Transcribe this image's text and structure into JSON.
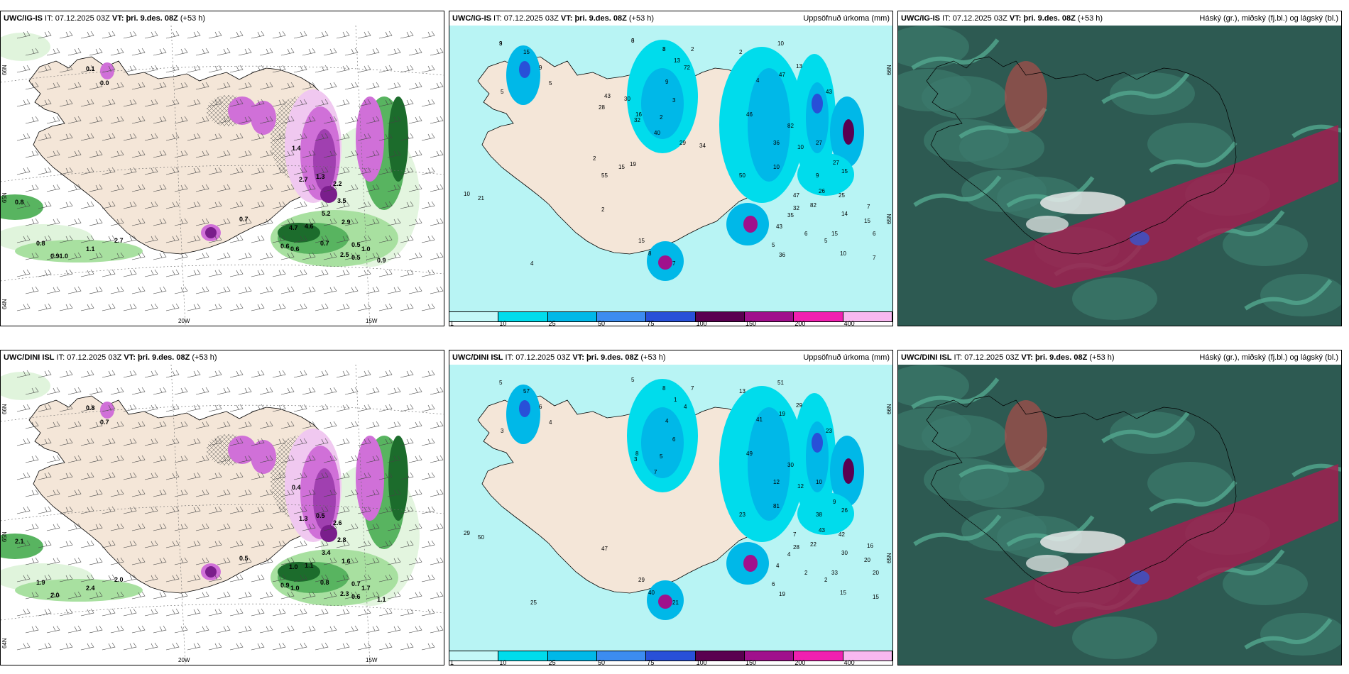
{
  "panels": [
    {
      "id": "p1",
      "model": "UWC/IG-IS",
      "it_label": "IT:",
      "it": "07.12.2025 03Z",
      "vt_label": "VT:",
      "vt": "þri. 9.des. 08Z",
      "lead": "(+53 h)",
      "right_title": "",
      "kind": "wind",
      "lon_labels": [
        "20W",
        "15W"
      ],
      "lat_labels": [
        "66N",
        "65N",
        "64N"
      ],
      "values": [
        "0.1",
        "0.0",
        "0.8",
        "0.8",
        "1.1",
        "2.7",
        "0.91.0",
        "0.7",
        "1.4",
        "2.7",
        "1.3",
        "2.2",
        "3.5",
        "5.2",
        "4.7",
        "4.6",
        "2.9",
        "0.6",
        "0.6",
        "0.7",
        "0.5",
        "0.5",
        "1.0",
        "0.9",
        "2.5"
      ]
    },
    {
      "id": "p2",
      "model": "UWC/IG-IS",
      "it_label": "IT:",
      "it": "07.12.2025 03Z",
      "vt_label": "VT:",
      "vt": "þri. 9.des. 08Z",
      "lead": "(+53 h)",
      "right_title": "Uppsöfnuð úrkoma (mm)",
      "kind": "precip",
      "lat_labels": [
        "66N",
        "65N"
      ],
      "values": [
        "9",
        "3",
        "3",
        "2",
        "2",
        "10",
        "4",
        "13",
        "47",
        "43",
        "46",
        "27",
        "82",
        "36",
        "10",
        "26",
        "50",
        "10",
        "9",
        "27",
        "82",
        "47",
        "35",
        "43",
        "36",
        "32",
        "15",
        "25",
        "14",
        "15",
        "10",
        "15",
        "6",
        "7",
        "7",
        "5",
        "6",
        "5",
        "7",
        "8",
        "15",
        "2",
        "4",
        "10",
        "21",
        "15",
        "9",
        "5",
        "5",
        "13",
        "72",
        "9",
        "3",
        "2",
        "16",
        "32",
        "40",
        "30",
        "43",
        "28",
        "29",
        "34",
        "55",
        "19",
        "15",
        "2",
        "3",
        "6",
        "8"
      ],
      "legend_labels": [
        "1",
        "10",
        "25",
        "50",
        "75",
        "100",
        "150",
        "200",
        "400"
      ]
    },
    {
      "id": "p3",
      "model": "UWC/IG-IS",
      "it_label": "IT:",
      "it": "07.12.2025 03Z",
      "vt_label": "VT:",
      "vt": "þri. 9.des. 08Z",
      "lead": "(+53 h)",
      "right_title": "Háský (gr.), miðský (fj.bl.) og lágský (bl.)",
      "kind": "cloud"
    },
    {
      "id": "p4",
      "model": "UWC/DINI ISL",
      "it_label": "IT:",
      "it": "07.12.2025 03Z",
      "vt_label": "VT:",
      "vt": "þri. 9.des. 08Z",
      "lead": "(+53 h)",
      "right_title": "",
      "kind": "wind",
      "lon_labels": [
        "20W",
        "15W"
      ],
      "lat_labels": [
        "66N",
        "65N",
        "64N"
      ],
      "values": [
        "0.8",
        "0.7",
        "2.1",
        "1.9",
        "2.4",
        "2.0",
        "2.0",
        "0.5",
        "0.4",
        "1.3",
        "0.5",
        "2.6",
        "2.8",
        "3.4",
        "1.0",
        "1.1",
        "1.6",
        "0.9",
        "1.0",
        "0.8",
        "0.7",
        "0.6",
        "1.7",
        "1.1",
        "2.3"
      ]
    },
    {
      "id": "p5",
      "model": "UWC/DINI ISL",
      "it_label": "IT:",
      "it": "07.12.2025 03Z",
      "vt_label": "VT:",
      "vt": "þri. 9.des. 08Z",
      "lead": "(+53 h)",
      "right_title": "Uppsöfnuð úrkoma (mm)",
      "kind": "precip",
      "lat_labels": [
        "66N",
        "65N"
      ],
      "values": [
        "5",
        "5",
        "8",
        "7",
        "13",
        "51",
        "41",
        "29",
        "19",
        "23",
        "49",
        "10",
        "30",
        "12",
        "12",
        "43",
        "23",
        "81",
        "38",
        "9",
        "22",
        "7",
        "4",
        "4",
        "19",
        "28",
        "26",
        "42",
        "30",
        "33",
        "15",
        "20",
        "20",
        "15",
        "16",
        "2",
        "2",
        "6",
        "21",
        "40",
        "29",
        "47",
        "25",
        "29",
        "50",
        "57",
        "6",
        "4",
        "3",
        "1",
        "4",
        "4",
        "6",
        "5",
        "8",
        "3",
        "7"
      ],
      "legend_labels": [
        "1",
        "10",
        "25",
        "50",
        "75",
        "100",
        "150",
        "200",
        "400"
      ]
    },
    {
      "id": "p6",
      "model": "UWC/DINI ISL",
      "it_label": "IT:",
      "it": "07.12.2025 03Z",
      "vt_label": "VT:",
      "vt": "þri. 9.des. 08Z",
      "lead": "(+53 h)",
      "right_title": "Háský (gr.), miðský (fj.bl.) og lágský (bl.)",
      "kind": "cloud"
    }
  ],
  "colors": {
    "land": "#f4e6d8",
    "sea_precip": "#b8f4f4",
    "precip_scale": [
      "#c4f8f8",
      "#00dcec",
      "#00b8e8",
      "#3c8cf0",
      "#2850d8",
      "#5a0050",
      "#a0108c",
      "#f020b0",
      "#f8b8f0"
    ],
    "wind_green": [
      "#e0f4dc",
      "#a8e0a0",
      "#58b460",
      "#1c6c2c"
    ],
    "wind_purple": [
      "#f0c8f0",
      "#d070d8",
      "#a040b0",
      "#7a1e8c"
    ],
    "cloud_base": "#2d5a52",
    "cloud_mid": "#3c7a6c",
    "cloud_high": "#52a88e",
    "cloud_red": "#a02050",
    "cloud_white": "#f0f0f0",
    "cloud_blue": "#4050c0"
  }
}
